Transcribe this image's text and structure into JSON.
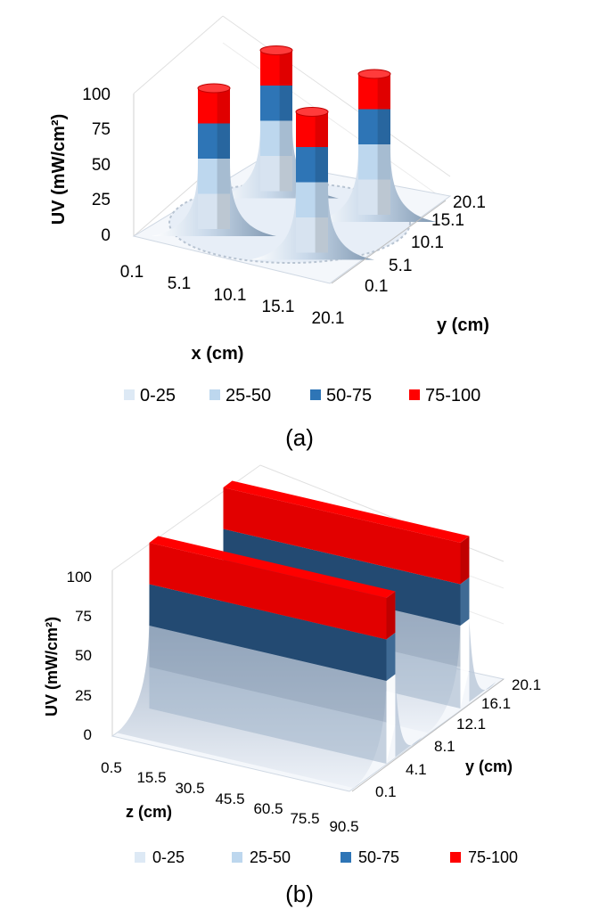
{
  "colors": {
    "band_0_25": "#dde9f5",
    "band_25_50": "#bdd7ee",
    "band_50_75": "#2e75b6",
    "band_75_100": "#ff0000"
  },
  "chart_data": [
    {
      "type": "surface",
      "caption": "(a)",
      "zlabel": "UV (mW/cm²)",
      "xlabel": "x (cm)",
      "ylabel": "y (cm)",
      "z_ticks": [
        "0",
        "25",
        "50",
        "75",
        "100"
      ],
      "x_ticks": [
        "0.1",
        "5.1",
        "10.1",
        "15.1",
        "20.1"
      ],
      "y_ticks": [
        "0.1",
        "5.1",
        "10.1",
        "15.1",
        "20.1"
      ],
      "zlim": [
        0,
        100
      ],
      "legend": {
        "position": "bottom",
        "entries": [
          {
            "label": "0-25",
            "range": [
              0,
              25
            ]
          },
          {
            "label": "25-50",
            "range": [
              25,
              50
            ]
          },
          {
            "label": "50-75",
            "range": [
              50,
              75
            ]
          },
          {
            "label": "75-100",
            "range": [
              75,
              100
            ]
          }
        ]
      },
      "peaks": [
        {
          "x": 5.1,
          "y": 15.1,
          "peak": 100
        },
        {
          "x": 15.1,
          "y": 15.1,
          "peak": 100
        },
        {
          "x": 5.1,
          "y": 5.1,
          "peak": 100
        },
        {
          "x": 15.1,
          "y": 5.1,
          "peak": 100
        }
      ]
    },
    {
      "type": "surface",
      "caption": "(b)",
      "zlabel": "UV (mW/cm²)",
      "xlabel": "z (cm)",
      "ylabel": "y (cm)",
      "z_ticks": [
        "0",
        "25",
        "50",
        "75",
        "100"
      ],
      "x_ticks": [
        "0.5",
        "15.5",
        "30.5",
        "45.5",
        "60.5",
        "75.5",
        "90.5"
      ],
      "y_ticks": [
        "0.1",
        "4.1",
        "8.1",
        "12.1",
        "16.1",
        "20.1"
      ],
      "zlim": [
        0,
        100
      ],
      "legend": {
        "position": "bottom",
        "entries": [
          {
            "label": "0-25",
            "range": [
              0,
              25
            ]
          },
          {
            "label": "25-50",
            "range": [
              25,
              50
            ]
          },
          {
            "label": "50-75",
            "range": [
              50,
              75
            ]
          },
          {
            "label": "75-100",
            "range": [
              75,
              100
            ]
          }
        ]
      },
      "ridges": [
        {
          "y": 5.1,
          "peak": 100
        },
        {
          "y": 15.1,
          "peak": 100
        }
      ]
    }
  ]
}
